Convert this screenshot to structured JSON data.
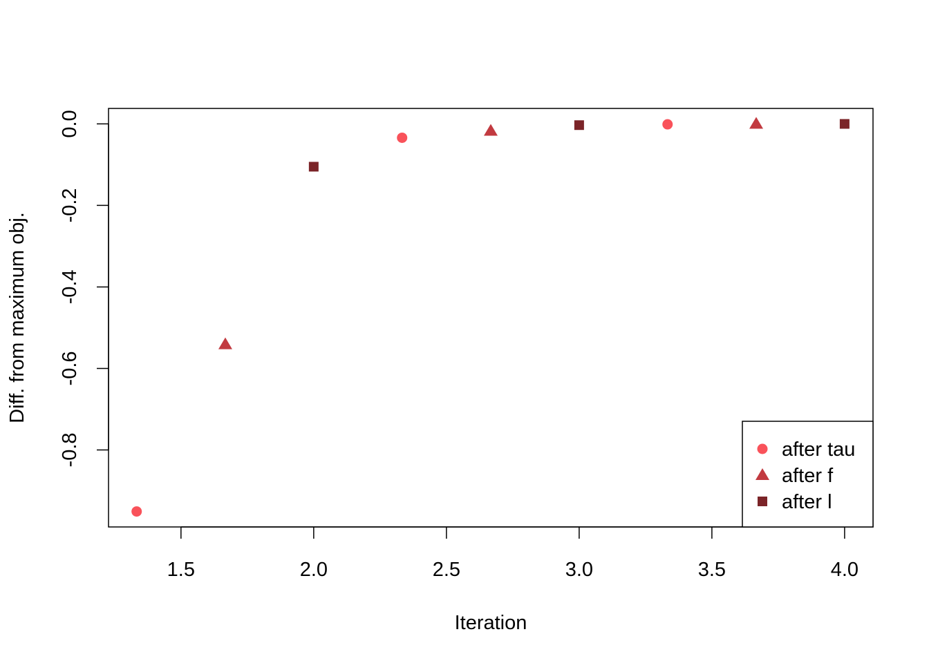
{
  "chart_data": {
    "type": "scatter",
    "title": "",
    "xlabel": "Iteration",
    "ylabel": "Diff. from maximum obj.",
    "xlim": [
      1.227,
      4.107
    ],
    "ylim": [
      -0.989,
      0.038
    ],
    "x_ticks": [
      1.5,
      2.0,
      2.5,
      3.0,
      3.5,
      4.0
    ],
    "x_tick_labels": [
      "1.5",
      "2.0",
      "2.5",
      "3.0",
      "3.5",
      "4.0"
    ],
    "y_ticks": [
      0.0,
      -0.2,
      -0.4,
      -0.6,
      -0.8
    ],
    "y_tick_labels": [
      "0.0",
      "-0.2",
      "-0.4",
      "-0.6",
      "-0.8"
    ],
    "grid": false,
    "legend_position": "bottom-right",
    "series": [
      {
        "name": "after tau",
        "marker": "circle",
        "color": "#F9525A",
        "x": [
          1.333,
          2.333,
          3.333
        ],
        "y": [
          -0.951,
          -0.034,
          -0.001
        ]
      },
      {
        "name": "after f",
        "marker": "triangle",
        "color": "#C23A40",
        "x": [
          1.667,
          2.667,
          3.667
        ],
        "y": [
          -0.541,
          -0.017,
          0.0
        ]
      },
      {
        "name": "after l",
        "marker": "square",
        "color": "#7B2428",
        "x": [
          2.0,
          3.0,
          4.0
        ],
        "y": [
          -0.105,
          -0.003,
          0.0
        ]
      }
    ]
  }
}
